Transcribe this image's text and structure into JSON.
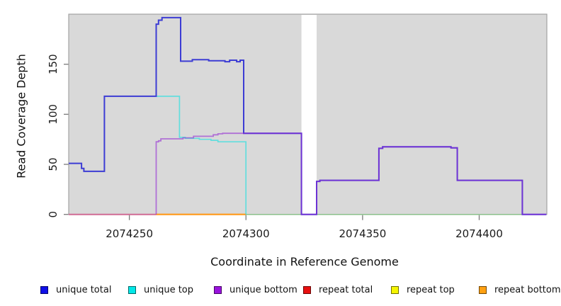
{
  "chart_data": {
    "type": "line",
    "subtype": "step-coverage",
    "xlabel": "Coordinate in Reference Genome",
    "ylabel": "Read Coverage Depth",
    "xlim": [
      2074224,
      2074429
    ],
    "ylim": [
      0,
      200
    ],
    "x_ticks": [
      {
        "value": 2074250,
        "label": "2074250"
      },
      {
        "value": 2074300,
        "label": "2074300"
      },
      {
        "value": 2074350,
        "label": "2074350"
      },
      {
        "value": 2074400,
        "label": "2074400"
      }
    ],
    "y_ticks": [
      {
        "value": 0,
        "label": "0"
      },
      {
        "value": 50,
        "label": "50"
      },
      {
        "value": 100,
        "label": "100"
      },
      {
        "value": 150,
        "label": "150"
      }
    ],
    "grid": false,
    "plot_bg": "#d9d9d9",
    "frame_color": "#a3a3a3",
    "tick_color": "#7a7a7a",
    "coverage_gap": {
      "x0": 2074323.8,
      "x1": 2074330.3
    },
    "baseline_segments": [
      {
        "name": "repeat-total-baseline",
        "color": "#cf6a93",
        "width": 2,
        "x0": 2074224,
        "x1": 2074261.5,
        "y": 0
      },
      {
        "name": "repeat-bottom-baseline",
        "color": "#ff9818",
        "width": 2.2,
        "x0": 2074261.5,
        "x1": 2074300,
        "y": 0
      },
      {
        "name": "right-baseline",
        "color": "#8abf8a",
        "width": 1.5,
        "x0": 2074300,
        "x1": 2074428.8,
        "y": 0
      }
    ],
    "series": [
      {
        "name": "unique top",
        "color": "rgba(0,225,225,0.55)",
        "width": 1.7,
        "points": [
          [
            2074261.5,
            118
          ],
          [
            2074271.5,
            118
          ],
          [
            2074271.5,
            77
          ],
          [
            2074274,
            77
          ],
          [
            2074274,
            76
          ],
          [
            2074280,
            76
          ],
          [
            2074280,
            75
          ],
          [
            2074285,
            75
          ],
          [
            2074285,
            74
          ],
          [
            2074288,
            74
          ],
          [
            2074288,
            72.5
          ],
          [
            2074300,
            72.5
          ],
          [
            2074300,
            0
          ]
        ]
      },
      {
        "name": "unique total",
        "color": "#3d3dd4",
        "width": 2,
        "points": [
          [
            2074224,
            51
          ],
          [
            2074229.5,
            51
          ],
          [
            2074229.5,
            46
          ],
          [
            2074230.5,
            46
          ],
          [
            2074230.5,
            43
          ],
          [
            2074239.3,
            43
          ],
          [
            2074239.3,
            118
          ],
          [
            2074261.5,
            118
          ],
          [
            2074261.5,
            190
          ],
          [
            2074262.5,
            190
          ],
          [
            2074262.5,
            194
          ],
          [
            2074264,
            194
          ],
          [
            2074264,
            196.5
          ],
          [
            2074272,
            196.5
          ],
          [
            2074272,
            153
          ],
          [
            2074277,
            153
          ],
          [
            2074277,
            154.5
          ],
          [
            2074284,
            154.5
          ],
          [
            2074284,
            153.5
          ],
          [
            2074291,
            153.5
          ],
          [
            2074291,
            152.5
          ],
          [
            2074293,
            152.5
          ],
          [
            2074293,
            154
          ],
          [
            2074296,
            154
          ],
          [
            2074296,
            152.5
          ],
          [
            2074297.5,
            152.5
          ],
          [
            2074297.5,
            154
          ],
          [
            2074299,
            154
          ],
          [
            2074299,
            81
          ],
          [
            2074323.8,
            81
          ],
          [
            2074323.8,
            0
          ],
          [
            2074330.3,
            0
          ],
          [
            2074330.3,
            33
          ],
          [
            2074331.7,
            33
          ],
          [
            2074331.7,
            34
          ],
          [
            2074357,
            34
          ],
          [
            2074357,
            66
          ],
          [
            2074358.6,
            66
          ],
          [
            2074358.6,
            67.5
          ],
          [
            2074387.9,
            67.5
          ],
          [
            2074387.9,
            66.5
          ],
          [
            2074390.6,
            66.5
          ],
          [
            2074390.6,
            34
          ],
          [
            2074418.5,
            34
          ],
          [
            2074418.5,
            0
          ],
          [
            2074428.8,
            0
          ]
        ]
      },
      {
        "name": "unique bottom",
        "color": "rgba(148,43,211,0.6)",
        "width": 1.8,
        "points": [
          [
            2074261.5,
            0
          ],
          [
            2074261.5,
            72.5
          ],
          [
            2074262.5,
            72.5
          ],
          [
            2074262.5,
            73.5
          ],
          [
            2074263.5,
            73.5
          ],
          [
            2074263.5,
            75.5
          ],
          [
            2074273,
            75.5
          ],
          [
            2074273,
            76.5
          ],
          [
            2074277.5,
            76.5
          ],
          [
            2074277.5,
            78
          ],
          [
            2074286,
            78
          ],
          [
            2074286,
            79.5
          ],
          [
            2074288,
            79.5
          ],
          [
            2074288,
            80.5
          ],
          [
            2074290,
            80.5
          ],
          [
            2074290,
            81
          ],
          [
            2074323.8,
            81
          ],
          [
            2074323.8,
            0
          ],
          [
            2074330.3,
            0
          ],
          [
            2074330.3,
            33
          ],
          [
            2074331.7,
            33
          ],
          [
            2074331.7,
            34
          ],
          [
            2074357,
            34
          ],
          [
            2074357,
            66
          ],
          [
            2074358.6,
            66
          ],
          [
            2074358.6,
            67.5
          ],
          [
            2074387.9,
            67.5
          ],
          [
            2074387.9,
            66.5
          ],
          [
            2074390.6,
            66.5
          ],
          [
            2074390.6,
            34
          ],
          [
            2074418.5,
            34
          ],
          [
            2074418.5,
            0
          ],
          [
            2074428.8,
            0
          ]
        ]
      }
    ],
    "legend": [
      {
        "label": "unique total",
        "swatch": "#0f0fe8"
      },
      {
        "label": "unique top",
        "swatch": "#00e8e8"
      },
      {
        "label": "unique bottom",
        "swatch": "#9912dd"
      },
      {
        "label": "repeat total",
        "swatch": "#e80f0f"
      },
      {
        "label": "repeat top",
        "swatch": "#f5f500"
      },
      {
        "label": "repeat bottom",
        "swatch": "#ffa011"
      }
    ],
    "legend_position": "bottom"
  },
  "titles": {
    "x_axis": "Coordinate in Reference Genome",
    "y_axis": "Read Coverage Depth"
  }
}
